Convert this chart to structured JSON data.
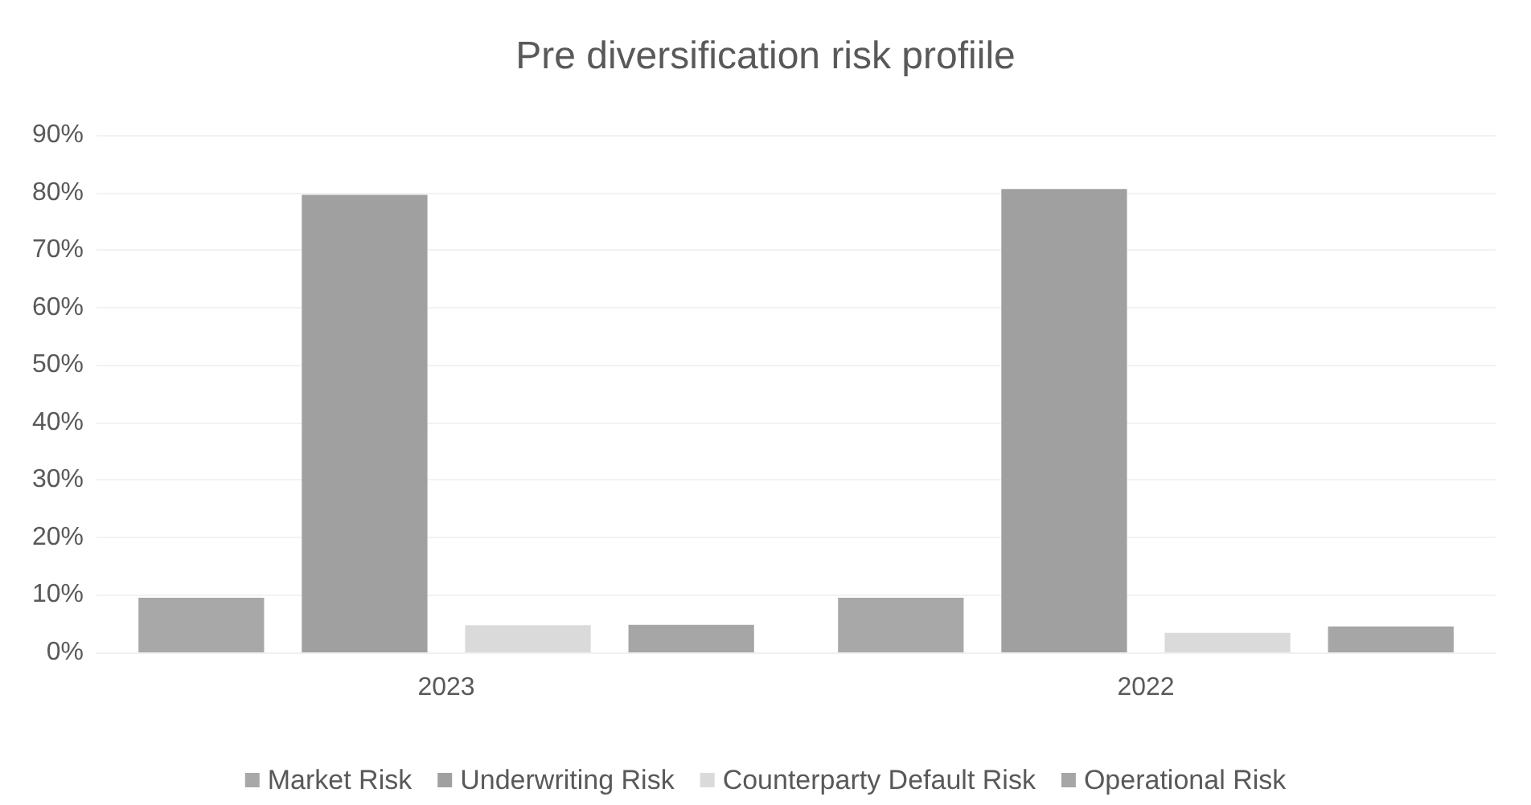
{
  "chart_data": {
    "type": "bar",
    "title": "Pre diversification risk profiile",
    "categories": [
      "2023",
      "2022"
    ],
    "series": [
      {
        "name": "Market Risk",
        "color": "#a8a8a8",
        "values": [
          9.5,
          9.5
        ]
      },
      {
        "name": "Underwriting Risk",
        "color": "#a0a0a0",
        "values": [
          79.6,
          80.6
        ]
      },
      {
        "name": "Counterparty Default Risk",
        "color": "#dadada",
        "values": [
          4.7,
          3.4
        ]
      },
      {
        "name": "Operational Risk",
        "color": "#a6a6a6",
        "values": [
          4.8,
          4.5
        ]
      }
    ],
    "ylim": [
      0,
      90
    ],
    "yticks": [
      {
        "value": 0,
        "label": "0%"
      },
      {
        "value": 10,
        "label": "10%"
      },
      {
        "value": 20,
        "label": "20%"
      },
      {
        "value": 30,
        "label": "30%"
      },
      {
        "value": 40,
        "label": "40%"
      },
      {
        "value": 50,
        "label": "50%"
      },
      {
        "value": 60,
        "label": "60%"
      },
      {
        "value": 70,
        "label": "70%"
      },
      {
        "value": 80,
        "label": "80%"
      },
      {
        "value": 90,
        "label": "90%"
      }
    ],
    "grid": true,
    "legend": "bottom"
  }
}
